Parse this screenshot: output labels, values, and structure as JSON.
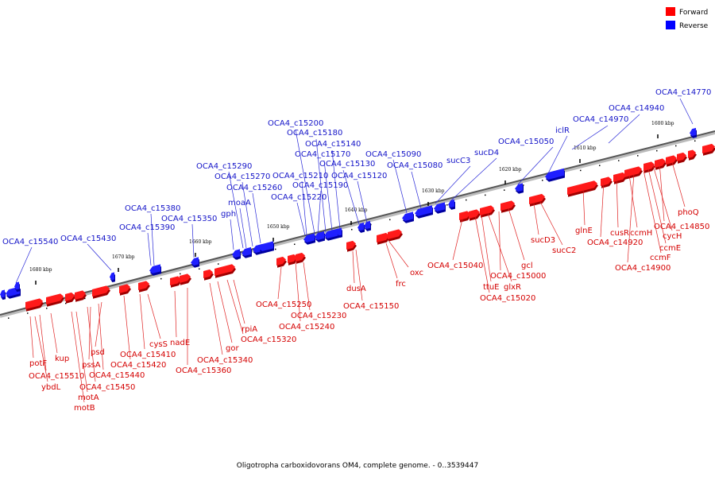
{
  "legend": {
    "forward_label": "Forward",
    "reverse_label": "Reverse",
    "forward_color": "#ff0000",
    "reverse_color": "#0000ff"
  },
  "caption": "Oligotropha carboxidovorans OM4, complete genome. - 0..3539447",
  "ruler_ticks": [
    "1600 kbp",
    "1610 kbp",
    "1620 kbp",
    "1630 kbp",
    "1640 kbp",
    "1650 kbp",
    "1660 kbp",
    "1670 kbp",
    "1680 kbp"
  ],
  "reverse_genes": [
    "OCA4_c14770",
    "OCA4_c14940",
    "OCA4_c14970",
    "iclR",
    "OCA4_c15050",
    "sucD4",
    "sucC3",
    "OCA4_c15080",
    "OCA4_c15090",
    "OCA4_c15120",
    "OCA4_c15130",
    "OCA4_c15140",
    "OCA4_c15170",
    "OCA4_c15180",
    "OCA4_c15190",
    "OCA4_c15200",
    "OCA4_c15210",
    "OCA4_c15220",
    "OCA4_c15260",
    "OCA4_c15270",
    "OCA4_c15290",
    "moaA",
    "gph",
    "OCA4_c15350",
    "OCA4_c15380",
    "OCA4_c15390",
    "OCA4_c15430",
    "OCA4_c15540"
  ],
  "forward_genes": [
    "phoQ",
    "OCA4_c14850",
    "cycH",
    "ccmE",
    "ccmF",
    "OCA4_c14900",
    "ccmH",
    "cusR",
    "OCA4_c14920",
    "glnE",
    "sucC2",
    "sucD3",
    "gcl",
    "OCA4_c15000",
    "glxR",
    "ttuE",
    "OCA4_c15020",
    "OCA4_c15040",
    "oxc",
    "frc",
    "OCA4_c15150",
    "dusA",
    "OCA4_c15240",
    "OCA4_c15230",
    "OCA4_c15250",
    "rpiA",
    "OCA4_c15320",
    "gor",
    "OCA4_c15340",
    "OCA4_c15360",
    "nadE",
    "cysS",
    "OCA4_c15410",
    "OCA4_c15420",
    "psd",
    "OCA4_c15440",
    "pssA",
    "OCA4_c15450",
    "motA",
    "motB",
    "kup",
    "OCA4_c15510",
    "ybdL",
    "potF"
  ]
}
